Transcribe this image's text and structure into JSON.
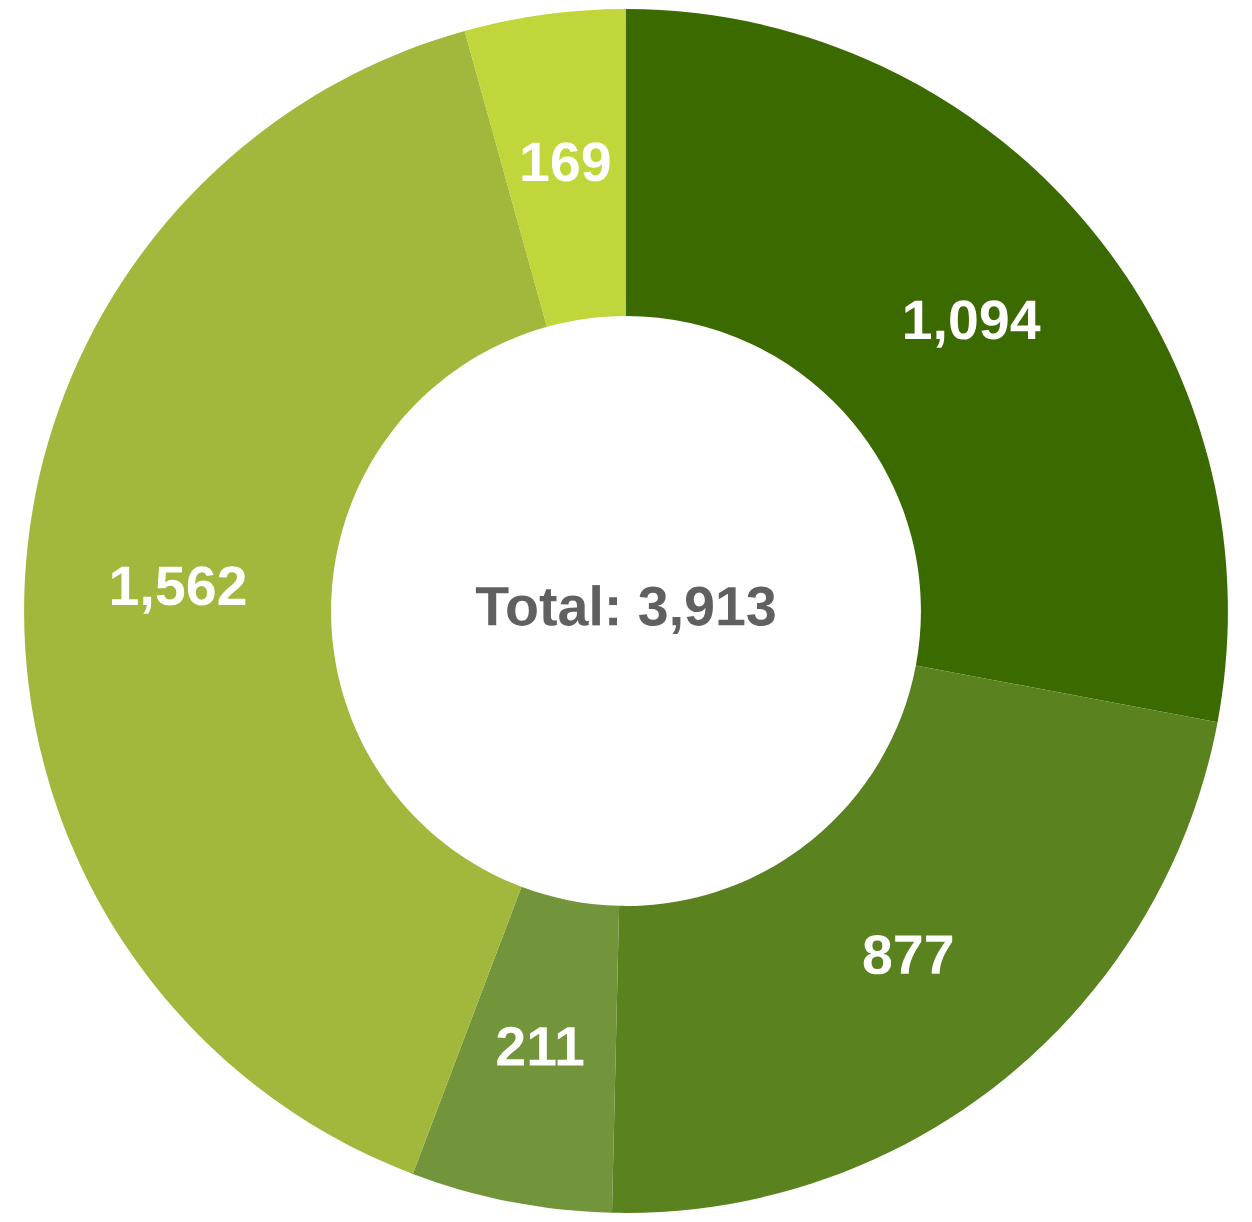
{
  "chart_data": {
    "type": "donut",
    "categories": [
      null,
      null,
      null,
      null,
      null
    ],
    "values": [
      1094,
      877,
      211,
      1562,
      169
    ],
    "colors": [
      "#3b6a00",
      "#5a8320",
      "#72953c",
      "#a2b83c",
      "#c1d63a"
    ],
    "value_labels": [
      "1,094",
      "877",
      "211",
      "1,562",
      "169"
    ],
    "annotations": [
      "Total: 3,913"
    ],
    "legend": false
  }
}
